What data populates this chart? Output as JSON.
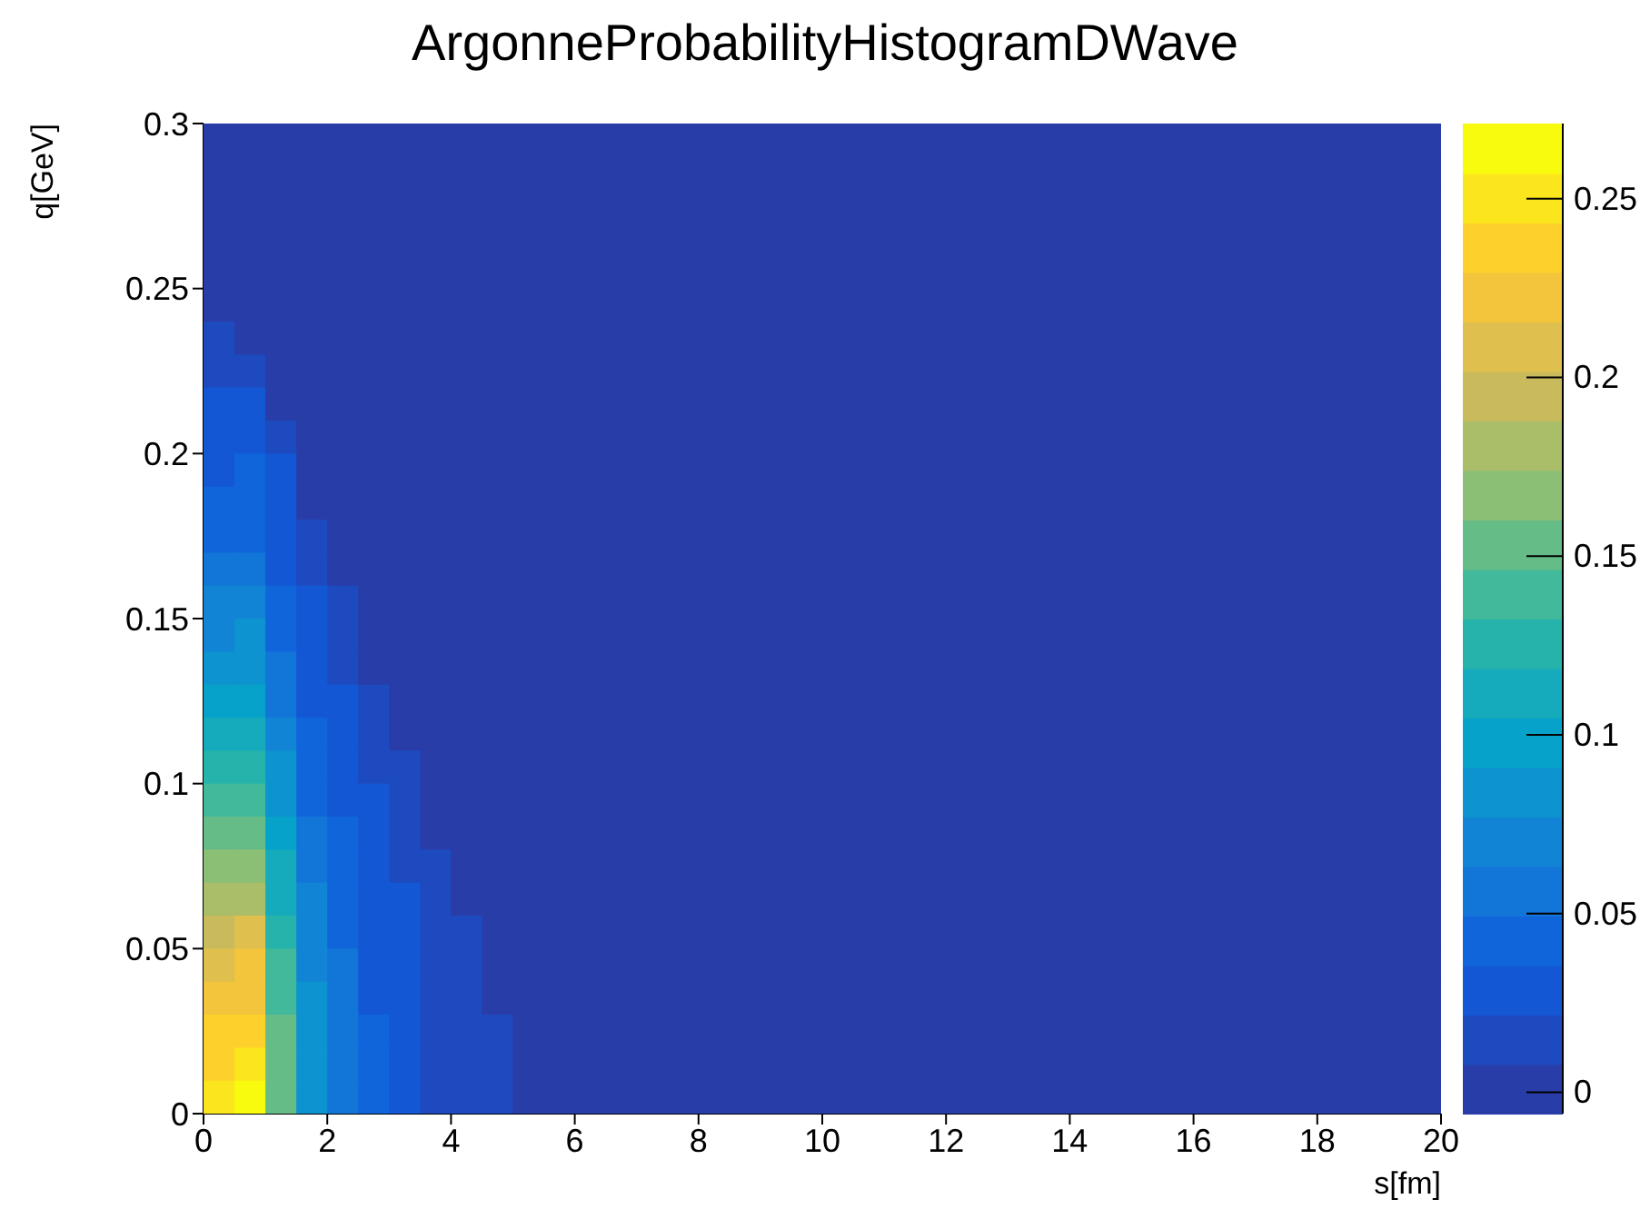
{
  "chart_data": {
    "type": "heatmap",
    "title": "ArgonneProbabilityHistogramDWave",
    "xlabel": "s[fm]",
    "ylabel": "q[GeV]",
    "x": [
      0.25,
      0.75,
      1.25,
      1.75,
      2.25,
      2.75,
      3.25,
      3.75,
      4.25,
      4.75,
      5.25,
      5.75,
      6.25,
      6.75,
      7.25,
      7.75,
      8.25,
      8.75,
      9.25,
      9.75,
      10.25,
      10.75,
      11.25,
      11.75,
      12.25,
      12.75,
      13.25,
      13.75,
      14.25,
      14.75,
      15.25,
      15.75,
      16.25,
      16.75,
      17.25,
      17.75,
      18.25,
      18.75,
      19.25,
      19.75
    ],
    "y": [
      0.295,
      0.285,
      0.275,
      0.265,
      0.255,
      0.245,
      0.235,
      0.225,
      0.215,
      0.205,
      0.195,
      0.185,
      0.175,
      0.165,
      0.155,
      0.145,
      0.135,
      0.125,
      0.115,
      0.105,
      0.095,
      0.085,
      0.075,
      0.065,
      0.055,
      0.045,
      0.035,
      0.025,
      0.015,
      0.005
    ],
    "cells": [
      [
        0,
        0,
        0,
        0,
        0,
        0,
        0,
        0,
        0,
        0,
        0,
        0,
        0,
        0,
        0,
        0,
        0,
        0,
        0,
        0,
        0,
        0,
        0,
        0,
        0,
        0,
        0,
        0,
        0,
        0,
        0,
        0,
        0,
        0,
        0,
        0,
        0,
        0,
        0,
        0
      ],
      [
        0,
        0,
        0,
        0,
        0,
        0,
        0,
        0,
        0,
        0,
        0,
        0,
        0,
        0,
        0,
        0,
        0,
        0,
        0,
        0,
        0,
        0,
        0,
        0,
        0,
        0,
        0,
        0,
        0,
        0,
        0,
        0,
        0,
        0,
        0,
        0,
        0,
        0,
        0,
        0
      ],
      [
        0,
        0,
        0,
        0,
        0,
        0,
        0,
        0,
        0,
        0,
        0,
        0,
        0,
        0,
        0,
        0,
        0,
        0,
        0,
        0,
        0,
        0,
        0,
        0,
        0,
        0,
        0,
        0,
        0,
        0,
        0,
        0,
        0,
        0,
        0,
        0,
        0,
        0,
        0,
        0
      ],
      [
        0,
        0,
        0,
        0,
        0,
        0,
        0,
        0,
        0,
        0,
        0,
        0,
        0,
        0,
        0,
        0,
        0,
        0,
        0,
        0,
        0,
        0,
        0,
        0,
        0,
        0,
        0,
        0,
        0,
        0,
        0,
        0,
        0,
        0,
        0,
        0,
        0,
        0,
        0,
        0
      ],
      [
        0,
        0,
        0,
        0,
        0,
        0,
        0,
        0,
        0,
        0,
        0,
        0,
        0,
        0,
        0,
        0,
        0,
        0,
        0,
        0,
        0,
        0,
        0,
        0,
        0,
        0,
        0,
        0,
        0,
        0,
        0,
        0,
        0,
        0,
        0,
        0,
        0,
        0,
        0,
        0
      ],
      [
        0,
        0,
        0,
        0,
        0,
        0,
        0,
        0,
        0,
        0,
        0,
        0,
        0,
        0,
        0,
        0,
        0,
        0,
        0,
        0,
        0,
        0,
        0,
        0,
        0,
        0,
        0,
        0,
        0,
        0,
        0,
        0,
        0,
        0,
        0,
        0,
        0,
        0,
        0,
        0
      ],
      [
        0.015,
        0,
        0,
        0,
        0,
        0,
        0,
        0,
        0,
        0,
        0,
        0,
        0,
        0,
        0,
        0,
        0,
        0,
        0,
        0,
        0,
        0,
        0,
        0,
        0,
        0,
        0,
        0,
        0,
        0,
        0,
        0,
        0,
        0,
        0,
        0,
        0,
        0,
        0,
        0
      ],
      [
        0.02,
        0.021,
        0,
        0,
        0,
        0,
        0,
        0,
        0,
        0,
        0,
        0,
        0,
        0,
        0,
        0,
        0,
        0,
        0,
        0,
        0,
        0,
        0,
        0,
        0,
        0,
        0,
        0,
        0,
        0,
        0,
        0,
        0,
        0,
        0,
        0,
        0,
        0,
        0,
        0
      ],
      [
        0.025,
        0.026,
        0,
        0,
        0,
        0,
        0,
        0,
        0,
        0,
        0,
        0,
        0,
        0,
        0,
        0,
        0,
        0,
        0,
        0,
        0,
        0,
        0,
        0,
        0,
        0,
        0,
        0,
        0,
        0,
        0,
        0,
        0,
        0,
        0,
        0,
        0,
        0,
        0,
        0
      ],
      [
        0.03,
        0.031,
        0.019,
        0,
        0,
        0,
        0,
        0,
        0,
        0,
        0,
        0,
        0,
        0,
        0,
        0,
        0,
        0,
        0,
        0,
        0,
        0,
        0,
        0,
        0,
        0,
        0,
        0,
        0,
        0,
        0,
        0,
        0,
        0,
        0,
        0,
        0,
        0,
        0,
        0
      ],
      [
        0.035,
        0.036,
        0.022,
        0,
        0,
        0,
        0,
        0,
        0,
        0,
        0,
        0,
        0,
        0,
        0,
        0,
        0,
        0,
        0,
        0,
        0,
        0,
        0,
        0,
        0,
        0,
        0,
        0,
        0,
        0,
        0,
        0,
        0,
        0,
        0,
        0,
        0,
        0,
        0,
        0
      ],
      [
        0.04,
        0.042,
        0.026,
        0,
        0,
        0,
        0,
        0,
        0,
        0,
        0,
        0,
        0,
        0,
        0,
        0,
        0,
        0,
        0,
        0,
        0,
        0,
        0,
        0,
        0,
        0,
        0,
        0,
        0,
        0,
        0,
        0,
        0,
        0,
        0,
        0,
        0,
        0,
        0,
        0
      ],
      [
        0.048,
        0.049,
        0.03,
        0.017,
        0,
        0,
        0,
        0,
        0,
        0,
        0,
        0,
        0,
        0,
        0,
        0,
        0,
        0,
        0,
        0,
        0,
        0,
        0,
        0,
        0,
        0,
        0,
        0,
        0,
        0,
        0,
        0,
        0,
        0,
        0,
        0,
        0,
        0,
        0,
        0
      ],
      [
        0.055,
        0.057,
        0.035,
        0.02,
        0,
        0,
        0,
        0,
        0,
        0,
        0,
        0,
        0,
        0,
        0,
        0,
        0,
        0,
        0,
        0,
        0,
        0,
        0,
        0,
        0,
        0,
        0,
        0,
        0,
        0,
        0,
        0,
        0,
        0,
        0,
        0,
        0,
        0,
        0,
        0
      ],
      [
        0.065,
        0.068,
        0.042,
        0.023,
        0.016,
        0,
        0,
        0,
        0,
        0,
        0,
        0,
        0,
        0,
        0,
        0,
        0,
        0,
        0,
        0,
        0,
        0,
        0,
        0,
        0,
        0,
        0,
        0,
        0,
        0,
        0,
        0,
        0,
        0,
        0,
        0,
        0,
        0,
        0,
        0
      ],
      [
        0.075,
        0.078,
        0.048,
        0.027,
        0.018,
        0,
        0,
        0,
        0,
        0,
        0,
        0,
        0,
        0,
        0,
        0,
        0,
        0,
        0,
        0,
        0,
        0,
        0,
        0,
        0,
        0,
        0,
        0,
        0,
        0,
        0,
        0,
        0,
        0,
        0,
        0,
        0,
        0,
        0,
        0
      ],
      [
        0.085,
        0.088,
        0.054,
        0.031,
        0.02,
        0,
        0,
        0,
        0,
        0,
        0,
        0,
        0,
        0,
        0,
        0,
        0,
        0,
        0,
        0,
        0,
        0,
        0,
        0,
        0,
        0,
        0,
        0,
        0,
        0,
        0,
        0,
        0,
        0,
        0,
        0,
        0,
        0,
        0,
        0
      ],
      [
        0.098,
        0.101,
        0.062,
        0.035,
        0.023,
        0.016,
        0,
        0,
        0,
        0,
        0,
        0,
        0,
        0,
        0,
        0,
        0,
        0,
        0,
        0,
        0,
        0,
        0,
        0,
        0,
        0,
        0,
        0,
        0,
        0,
        0,
        0,
        0,
        0,
        0,
        0,
        0,
        0,
        0,
        0
      ],
      [
        0.11,
        0.114,
        0.07,
        0.04,
        0.026,
        0.018,
        0,
        0,
        0,
        0,
        0,
        0,
        0,
        0,
        0,
        0,
        0,
        0,
        0,
        0,
        0,
        0,
        0,
        0,
        0,
        0,
        0,
        0,
        0,
        0,
        0,
        0,
        0,
        0,
        0,
        0,
        0,
        0,
        0,
        0
      ],
      [
        0.123,
        0.127,
        0.078,
        0.044,
        0.029,
        0.02,
        0.015,
        0,
        0,
        0,
        0,
        0,
        0,
        0,
        0,
        0,
        0,
        0,
        0,
        0,
        0,
        0,
        0,
        0,
        0,
        0,
        0,
        0,
        0,
        0,
        0,
        0,
        0,
        0,
        0,
        0,
        0,
        0,
        0,
        0
      ],
      [
        0.135,
        0.14,
        0.086,
        0.049,
        0.032,
        0.022,
        0.016,
        0,
        0,
        0,
        0,
        0,
        0,
        0,
        0,
        0,
        0,
        0,
        0,
        0,
        0,
        0,
        0,
        0,
        0,
        0,
        0,
        0,
        0,
        0,
        0,
        0,
        0,
        0,
        0,
        0,
        0,
        0,
        0,
        0
      ],
      [
        0.15,
        0.156,
        0.096,
        0.054,
        0.036,
        0.024,
        0.018,
        0,
        0,
        0,
        0,
        0,
        0,
        0,
        0,
        0,
        0,
        0,
        0,
        0,
        0,
        0,
        0,
        0,
        0,
        0,
        0,
        0,
        0,
        0,
        0,
        0,
        0,
        0,
        0,
        0,
        0,
        0,
        0,
        0
      ],
      [
        0.165,
        0.172,
        0.106,
        0.059,
        0.04,
        0.026,
        0.02,
        0.013,
        0,
        0,
        0,
        0,
        0,
        0,
        0,
        0,
        0,
        0,
        0,
        0,
        0,
        0,
        0,
        0,
        0,
        0,
        0,
        0,
        0,
        0,
        0,
        0,
        0,
        0,
        0,
        0,
        0,
        0,
        0,
        0
      ],
      [
        0.18,
        0.187,
        0.115,
        0.065,
        0.043,
        0.029,
        0.022,
        0.014,
        0,
        0,
        0,
        0,
        0,
        0,
        0,
        0,
        0,
        0,
        0,
        0,
        0,
        0,
        0,
        0,
        0,
        0,
        0,
        0,
        0,
        0,
        0,
        0,
        0,
        0,
        0,
        0,
        0,
        0,
        0,
        0
      ],
      [
        0.195,
        0.203,
        0.125,
        0.07,
        0.047,
        0.031,
        0.023,
        0.016,
        0.012,
        0,
        0,
        0,
        0,
        0,
        0,
        0,
        0,
        0,
        0,
        0,
        0,
        0,
        0,
        0,
        0,
        0,
        0,
        0,
        0,
        0,
        0,
        0,
        0,
        0,
        0,
        0,
        0,
        0,
        0,
        0
      ],
      [
        0.208,
        0.216,
        0.133,
        0.075,
        0.05,
        0.033,
        0.025,
        0.017,
        0.012,
        0,
        0,
        0,
        0,
        0,
        0,
        0,
        0,
        0,
        0,
        0,
        0,
        0,
        0,
        0,
        0,
        0,
        0,
        0,
        0,
        0,
        0,
        0,
        0,
        0,
        0,
        0,
        0,
        0,
        0,
        0
      ],
      [
        0.22,
        0.229,
        0.141,
        0.079,
        0.053,
        0.035,
        0.026,
        0.018,
        0.013,
        0,
        0,
        0,
        0,
        0,
        0,
        0,
        0,
        0,
        0,
        0,
        0,
        0,
        0,
        0,
        0,
        0,
        0,
        0,
        0,
        0,
        0,
        0,
        0,
        0,
        0,
        0,
        0,
        0,
        0,
        0
      ],
      [
        0.233,
        0.242,
        0.149,
        0.084,
        0.056,
        0.037,
        0.028,
        0.019,
        0.014,
        0.009,
        0,
        0,
        0,
        0,
        0,
        0,
        0,
        0,
        0,
        0,
        0,
        0,
        0,
        0,
        0,
        0,
        0,
        0,
        0,
        0,
        0,
        0,
        0,
        0,
        0,
        0,
        0,
        0,
        0,
        0
      ],
      [
        0.243,
        0.252,
        0.155,
        0.087,
        0.058,
        0.039,
        0.029,
        0.019,
        0.015,
        0.01,
        0,
        0,
        0,
        0,
        0,
        0,
        0,
        0,
        0,
        0,
        0,
        0,
        0,
        0,
        0,
        0,
        0,
        0,
        0,
        0,
        0,
        0,
        0,
        0,
        0,
        0,
        0,
        0,
        0,
        0
      ],
      [
        0.25,
        0.26,
        0.16,
        0.09,
        0.06,
        0.04,
        0.03,
        0.02,
        0.015,
        0.01,
        0,
        0,
        0,
        0,
        0,
        0,
        0,
        0,
        0,
        0,
        0,
        0,
        0,
        0,
        0,
        0,
        0,
        0,
        0,
        0,
        0,
        0,
        0,
        0,
        0,
        0,
        0,
        0,
        0,
        0
      ]
    ],
    "xlim": [
      0,
      20
    ],
    "xticks": [
      0,
      2,
      4,
      6,
      8,
      10,
      12,
      14,
      16,
      18,
      20
    ],
    "ylim": [
      0,
      0.3
    ],
    "yticks": [
      0,
      0.05,
      0.1,
      0.15,
      0.2,
      0.25,
      0.3
    ],
    "clim": [
      -0.006,
      0.271
    ],
    "cticks": [
      0,
      0.05,
      0.1,
      0.15,
      0.2,
      0.25
    ]
  }
}
